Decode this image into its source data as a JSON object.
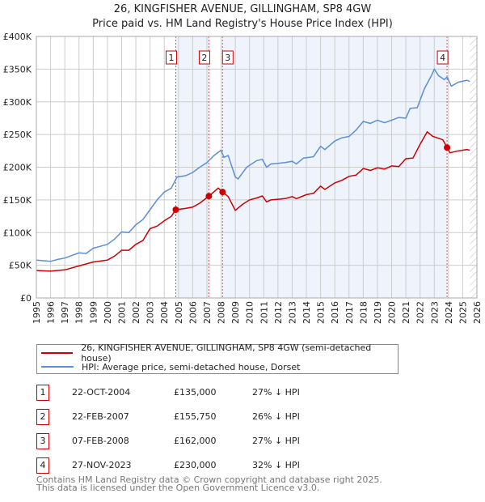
{
  "chart_data": {
    "type": "line",
    "title": "26, KINGFISHER AVENUE, GILLINGHAM, SP8 4GW",
    "subtitle": "Price paid vs. HM Land Registry's House Price Index (HPI)",
    "xlim": [
      1995,
      2026
    ],
    "ylim": [
      0,
      400000
    ],
    "x_ticks": [
      "1995",
      "1996",
      "1997",
      "1998",
      "1999",
      "2000",
      "2001",
      "2002",
      "2003",
      "2004",
      "2005",
      "2006",
      "2007",
      "2008",
      "2009",
      "2010",
      "2011",
      "2012",
      "2013",
      "2014",
      "2015",
      "2016",
      "2017",
      "2018",
      "2019",
      "2020",
      "2021",
      "2022",
      "2023",
      "2024",
      "2025",
      "2026"
    ],
    "y_ticks": [
      {
        "v": 0,
        "label": "£0"
      },
      {
        "v": 50000,
        "label": "£50K"
      },
      {
        "v": 100000,
        "label": "£100K"
      },
      {
        "v": 150000,
        "label": "£150K"
      },
      {
        "v": 200000,
        "label": "£200K"
      },
      {
        "v": 250000,
        "label": "£250K"
      },
      {
        "v": 300000,
        "label": "£300K"
      },
      {
        "v": 350000,
        "label": "£350K"
      },
      {
        "v": 400000,
        "label": "£400K"
      }
    ],
    "grid": true,
    "shaded_ranges": [
      [
        2004.81,
        2007.14
      ],
      [
        2008.1,
        2023.9
      ]
    ],
    "forecast_hatch_from": 2025.5,
    "series": [
      {
        "name": "26, KINGFISHER AVENUE, GILLINGHAM, SP8 4GW (semi-detached house)",
        "color": "#cc0000",
        "x": [
          1995,
          1996,
          1997,
          1998,
          1999,
          2000,
          2000.5,
          2001,
          2001.5,
          2002,
          2002.5,
          2003,
          2003.5,
          2004,
          2004.5,
          2004.81,
          2005.5,
          2006,
          2006.5,
          2007.14,
          2007.8,
          2008.1,
          2008.5,
          2009,
          2009.5,
          2010,
          2010.5,
          2010.9,
          2011.2,
          2011.5,
          2012,
          2012.5,
          2013,
          2013.3,
          2014,
          2014.5,
          2015,
          2015.3,
          2016,
          2016.5,
          2017,
          2017.5,
          2018,
          2018.5,
          2019,
          2019.5,
          2020,
          2020.5,
          2021,
          2021.5,
          2022,
          2022.5,
          2022.9,
          2023.6,
          2023.9,
          2024.1,
          2024.7,
          2025.3,
          2025.5
        ],
        "y": [
          42000,
          41000,
          43000,
          49000,
          55000,
          58000,
          64000,
          73000,
          73000,
          82000,
          88000,
          106000,
          110000,
          118000,
          125000,
          135000,
          137000,
          139000,
          145000,
          155750,
          168000,
          162000,
          155000,
          134000,
          143000,
          150000,
          153000,
          156000,
          147000,
          150000,
          151000,
          152000,
          155000,
          152000,
          158000,
          160000,
          171000,
          166000,
          176000,
          180000,
          186000,
          188000,
          198000,
          195000,
          199000,
          197000,
          202000,
          201000,
          213000,
          214000,
          235000,
          254000,
          247000,
          242000,
          230000,
          222000,
          225000,
          227000,
          226000
        ]
      },
      {
        "name": "HPI: Average price, semi-detached house, Dorset",
        "color": "#5b8fd6",
        "x": [
          1995,
          1996,
          1996.5,
          1997,
          1998,
          1998.5,
          1999,
          2000,
          2000.5,
          2001,
          2001.5,
          2002,
          2002.5,
          2003,
          2003.5,
          2004,
          2004.5,
          2004.9,
          2005.5,
          2006,
          2006.5,
          2007,
          2007.5,
          2008,
          2008.2,
          2008.5,
          2009,
          2009.2,
          2009.8,
          2010.5,
          2010.9,
          2011.2,
          2011.5,
          2012,
          2012.5,
          2013,
          2013.3,
          2013.8,
          2014.5,
          2015,
          2015.3,
          2016,
          2016.5,
          2017,
          2017.5,
          2018,
          2018.5,
          2019,
          2019.5,
          2020,
          2020.5,
          2021,
          2021.3,
          2021.8,
          2022.3,
          2022.8,
          2023,
          2023.3,
          2023.7,
          2023.9,
          2024.2,
          2024.7,
          2025.3,
          2025.5
        ],
        "y": [
          58000,
          56000,
          59000,
          61000,
          69000,
          68000,
          76000,
          82000,
          90000,
          101000,
          100000,
          112000,
          120000,
          135000,
          150000,
          162000,
          168000,
          185000,
          187000,
          192000,
          200000,
          207000,
          218000,
          226000,
          215000,
          218000,
          185000,
          182000,
          200000,
          210000,
          212000,
          200000,
          205000,
          206000,
          207000,
          209000,
          205000,
          214000,
          216000,
          232000,
          227000,
          240000,
          245000,
          247000,
          257000,
          270000,
          267000,
          272000,
          268000,
          272000,
          276000,
          275000,
          290000,
          291000,
          320000,
          340000,
          350000,
          340000,
          334000,
          338000,
          324000,
          330000,
          333000,
          331000
        ]
      }
    ],
    "sales": [
      {
        "label": "1",
        "x": 2004.81,
        "y": 135000
      },
      {
        "label": "2",
        "x": 2007.14,
        "y": 155750
      },
      {
        "label": "3",
        "x": 2008.1,
        "y": 162000
      },
      {
        "label": "4",
        "x": 2023.9,
        "y": 230000
      }
    ]
  },
  "legend": {
    "property": "26, KINGFISHER AVENUE, GILLINGHAM, SP8 4GW (semi-detached house)",
    "hpi": "HPI: Average price, semi-detached house, Dorset"
  },
  "table": [
    {
      "num": "1",
      "date": "22-OCT-2004",
      "price": "£135,000",
      "hpi": "27% ↓ HPI"
    },
    {
      "num": "2",
      "date": "22-FEB-2007",
      "price": "£155,750",
      "hpi": "26% ↓ HPI"
    },
    {
      "num": "3",
      "date": "07-FEB-2008",
      "price": "£162,000",
      "hpi": "27% ↓ HPI"
    },
    {
      "num": "4",
      "date": "27-NOV-2023",
      "price": "£230,000",
      "hpi": "32% ↓ HPI"
    }
  ],
  "footer": {
    "line1": "Contains HM Land Registry data © Crown copyright and database right 2025.",
    "line2": "This data is licensed under the Open Government Licence v3.0."
  }
}
